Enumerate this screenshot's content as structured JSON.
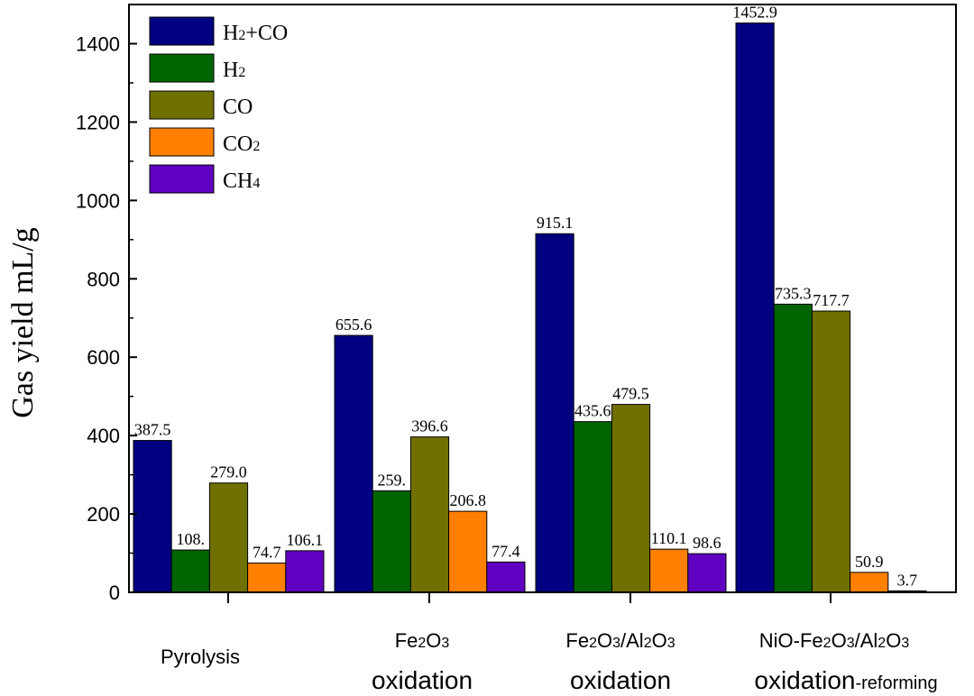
{
  "chart_data": {
    "type": "bar",
    "title": "",
    "xlabel": "",
    "ylabel": "Gas yield mL/g",
    "ylim": [
      0,
      1500
    ],
    "yticks": [
      0,
      200,
      400,
      600,
      800,
      1000,
      1200,
      1400
    ],
    "categories": [
      {
        "line1": "Pyrolysis",
        "line2": ""
      },
      {
        "line1": "Fe2O3",
        "line2": "oxidation"
      },
      {
        "line1": "Fe2O3/Al2O3",
        "line2": "oxidation"
      },
      {
        "line1": "NiO-Fe2O3/Al2O3",
        "line2": "oxidation",
        "line2_suffix": "-reforming"
      }
    ],
    "series": [
      {
        "name": "H2+CO",
        "color": "#000080",
        "values": [
          387.5,
          655.6,
          915.1,
          1452.9
        ],
        "labels": [
          "387.5",
          "655.6",
          "915.1",
          "1452.9"
        ]
      },
      {
        "name": "H2",
        "color": "#006400",
        "values": [
          108.0,
          259.0,
          435.6,
          735.3
        ],
        "labels": [
          "108.",
          "259.",
          "435.6",
          "735.3"
        ]
      },
      {
        "name": "CO",
        "color": "#707000",
        "values": [
          279.0,
          396.6,
          479.5,
          717.7
        ],
        "labels": [
          "279.0",
          "396.6",
          "479.5",
          "717.7"
        ]
      },
      {
        "name": "CO2",
        "color": "#FF8000",
        "values": [
          74.7,
          206.8,
          110.1,
          50.9
        ],
        "labels": [
          "74.7",
          "206.8",
          "110.1",
          "50.9"
        ]
      },
      {
        "name": "CH4",
        "color": "#6000C0",
        "values": [
          106.1,
          77.4,
          98.6,
          3.7
        ],
        "labels": [
          "106.1",
          "77.4",
          "98.6",
          "3.7"
        ]
      }
    ],
    "legend_position": "top-left"
  }
}
